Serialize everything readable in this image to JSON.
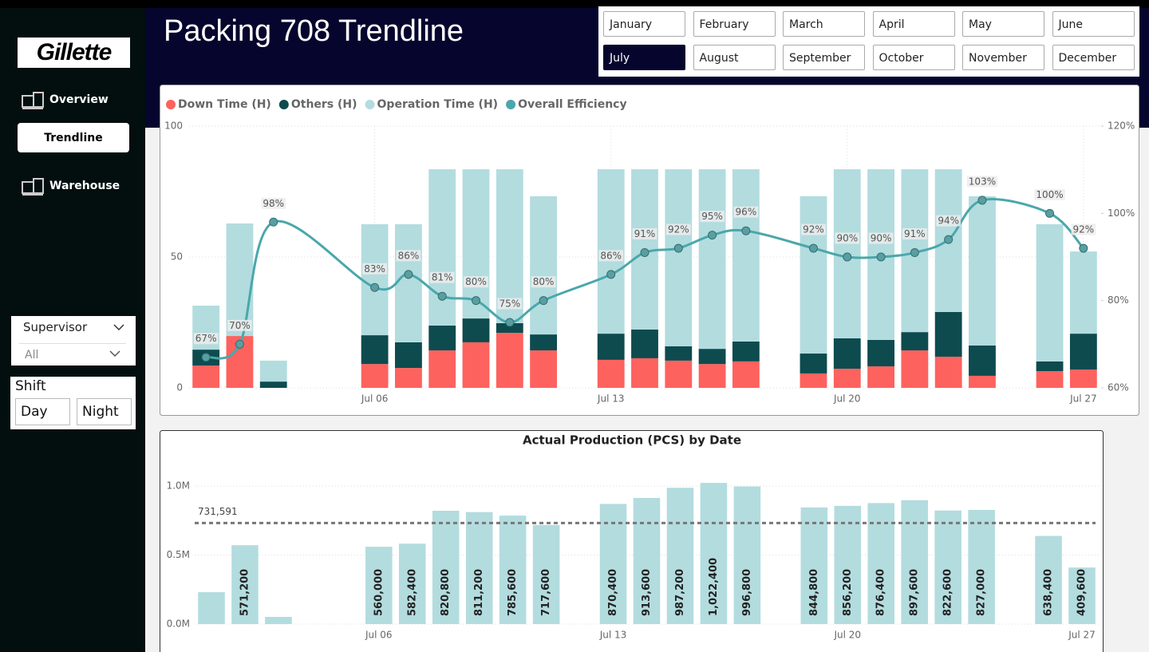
{
  "sidebar": {
    "logo": "Gillette",
    "nav": [
      "Overview",
      "Trendline",
      "Warehouse"
    ],
    "active_nav": 1,
    "supervisor": {
      "label": "Supervisor",
      "value": "All"
    },
    "shift": {
      "label": "Shift",
      "options": [
        "Day",
        "Night"
      ]
    }
  },
  "header": {
    "title": "Packing 708 Trendline"
  },
  "month_slicer": {
    "months": [
      "January",
      "February",
      "March",
      "April",
      "May",
      "June",
      "July",
      "August",
      "September",
      "October",
      "November",
      "December"
    ],
    "selected": 6
  },
  "chart_data": [
    {
      "type": "combo",
      "categories": [
        null,
        null,
        null,
        null,
        null,
        "Jul 06",
        null,
        null,
        null,
        null,
        null,
        null,
        "Jul 13",
        null,
        null,
        null,
        null,
        null,
        null,
        "Jul 20",
        null,
        null,
        null,
        null,
        null,
        null,
        "Jul 27"
      ],
      "series": [
        {
          "name": "Down Time (H)",
          "type": "bar",
          "color": "#fd625e",
          "values": [
            8.5,
            19.8,
            0,
            null,
            null,
            9.1,
            7.6,
            14.3,
            17.4,
            21,
            14.3,
            null,
            10.7,
            11.3,
            10.4,
            9.1,
            10.1,
            null,
            5.5,
            7.3,
            8.2,
            14.3,
            11.9,
            4.6,
            null,
            6.4,
            7
          ]
        },
        {
          "name": "Others (H)",
          "type": "bar",
          "color": "#0d4b4f",
          "values": [
            6.1,
            0,
            2.4,
            null,
            null,
            11,
            9.8,
            9.5,
            9.1,
            3.7,
            6.1,
            null,
            10,
            11,
            5.5,
            5.8,
            7.6,
            null,
            7.6,
            11.6,
            10.1,
            7,
            17.1,
            11.6,
            null,
            3.7,
            13.7
          ]
        },
        {
          "name": "Operation Time (H)",
          "type": "bar",
          "color": "#b3dcdf",
          "values": [
            16.8,
            43,
            8,
            null,
            null,
            42.4,
            45.1,
            59.7,
            57,
            58.8,
            52.8,
            null,
            62.8,
            61.2,
            67.6,
            68.6,
            65.8,
            null,
            60.1,
            64.6,
            65.2,
            62.2,
            54.5,
            57,
            null,
            52.4,
            31.4
          ]
        },
        {
          "name": "Overall Efficiency",
          "type": "line",
          "axis": "y2",
          "color": "#4aa7ab",
          "values": [
            67,
            70,
            98,
            null,
            null,
            83,
            86,
            81,
            80,
            75,
            80,
            null,
            86,
            91,
            92,
            95,
            96,
            null,
            92,
            90,
            90,
            91,
            94,
            103,
            null,
            100,
            92
          ],
          "value_labels": [
            "67%",
            "70%",
            "98%",
            null,
            null,
            "83%",
            "86%",
            "81%",
            "80%",
            "75%",
            "80%",
            null,
            "86%",
            "91%",
            "92%",
            "95%",
            "96%",
            null,
            "92%",
            "90%",
            "90%",
            "91%",
            "94%",
            "103%",
            null,
            "100%",
            "92%"
          ]
        }
      ],
      "stacked": true,
      "ylim": [
        0,
        100
      ],
      "yticks": [
        0,
        50,
        100
      ],
      "y2lim": [
        60,
        120
      ],
      "y2ticks": [
        {
          "value": 60,
          "label": "60%"
        },
        {
          "value": 80,
          "label": "80%"
        },
        {
          "value": 100,
          "label": "100%"
        },
        {
          "value": 120,
          "label": "120%"
        }
      ],
      "grid": true,
      "legend": "top-left"
    },
    {
      "type": "bar",
      "title": "Actual Production (PCS) by Date",
      "categories": [
        null,
        null,
        null,
        null,
        null,
        "Jul 06",
        null,
        null,
        null,
        null,
        null,
        null,
        "Jul 13",
        null,
        null,
        null,
        null,
        null,
        null,
        "Jul 20",
        null,
        null,
        null,
        null,
        null,
        null,
        "Jul 27"
      ],
      "values": [
        231000,
        571200,
        52000,
        null,
        null,
        560000,
        582400,
        820800,
        811200,
        785600,
        717600,
        null,
        870400,
        913600,
        987200,
        1022400,
        996800,
        null,
        844800,
        856200,
        876400,
        897600,
        822600,
        827000,
        null,
        638400,
        409600
      ],
      "value_labels": [
        null,
        "571,200",
        null,
        null,
        null,
        "560,000",
        "582,400",
        "820,800",
        "811,200",
        "785,600",
        "717,600",
        null,
        "870,400",
        "913,600",
        "987,200",
        "1,022,400",
        "996,800",
        null,
        "844,800",
        "856,200",
        "876,400",
        "897,600",
        "822,600",
        "827,000",
        null,
        "638,400",
        "409,600"
      ],
      "color": "#b3dcdf",
      "ylim": [
        0,
        1200000
      ],
      "yticks": [
        {
          "value": 0,
          "label": "0.0M"
        },
        {
          "value": 500000,
          "label": "0.5M"
        },
        {
          "value": 1000000,
          "label": "1.0M"
        }
      ],
      "reference_line": {
        "value": 731591,
        "label": "731,591"
      },
      "grid": true
    }
  ]
}
